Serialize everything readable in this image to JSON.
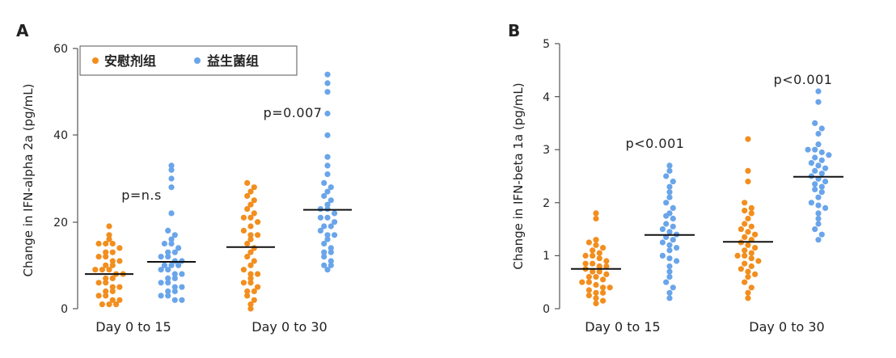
{
  "colors": {
    "placebo": "#f28e1e",
    "probiotic": "#6aa5ea"
  },
  "legend": {
    "placebo_label": "安慰剂组",
    "probiotic_label": "益生菌组"
  },
  "chart_data": [
    {
      "panel": "A",
      "type": "scatter",
      "ylabel": "Change in IFN-alpha 2a (pg/mL)",
      "ylim": [
        0,
        60
      ],
      "yticks": [
        "0",
        "20",
        "40",
        "60"
      ],
      "ytick_values": [
        0,
        20,
        40,
        60
      ],
      "legend_position": "top-left",
      "categories": [
        "Day 0 to 15",
        "Day 0 to 30"
      ],
      "pvalues": [
        "p=n.s",
        "p=0.007"
      ],
      "groups": [
        {
          "category": "Day 0 to 15",
          "series": "安慰剂组",
          "median": 8,
          "values": [
            19,
            17,
            16,
            15,
            15,
            15,
            14,
            13,
            13,
            12,
            12,
            11,
            11,
            10,
            10,
            9,
            9,
            9,
            8,
            8,
            7,
            7,
            6,
            6,
            5,
            5,
            4,
            4,
            3,
            3,
            2,
            2,
            1,
            1,
            1
          ]
        },
        {
          "category": "Day 0 to 15",
          "series": "益生菌组",
          "median": 10.8,
          "values": [
            33,
            32,
            30,
            28,
            22,
            18,
            17,
            16,
            15,
            15,
            14,
            13,
            13,
            12,
            12,
            11,
            11,
            10,
            10,
            10,
            9,
            9,
            8,
            8,
            7,
            7,
            6,
            6,
            5,
            5,
            4,
            4,
            3,
            3,
            2,
            2
          ]
        },
        {
          "category": "Day 0 to 30",
          "series": "安慰剂组",
          "median": 14.2,
          "values": [
            29,
            28,
            27,
            26,
            25,
            24,
            23,
            22,
            21,
            21,
            20,
            19,
            18,
            17,
            17,
            16,
            15,
            14,
            13,
            12,
            11,
            10,
            9,
            8,
            8,
            7,
            6,
            6,
            5,
            4,
            4,
            3,
            2,
            1,
            0
          ]
        },
        {
          "category": "Day 0 to 30",
          "series": "益生菌组",
          "median": 22.8,
          "values": [
            54,
            52,
            50,
            45,
            40,
            35,
            33,
            31,
            29,
            28,
            27,
            26,
            25,
            24,
            23,
            23,
            22,
            21,
            21,
            20,
            19,
            19,
            18,
            17,
            17,
            16,
            15,
            14,
            13,
            13,
            12,
            11,
            10,
            10,
            9
          ]
        }
      ]
    },
    {
      "panel": "B",
      "type": "scatter",
      "ylabel": "Change in IFN-beta 1a (pg/mL)",
      "ylim": [
        0,
        5
      ],
      "yticks": [
        "0",
        "1",
        "2",
        "3",
        "4",
        "5"
      ],
      "ytick_values": [
        0,
        1,
        2,
        3,
        4,
        5
      ],
      "categories": [
        "Day 0 to 15",
        "Day 0 to 30"
      ],
      "pvalues": [
        "p<0.001",
        "p<0.001"
      ],
      "groups": [
        {
          "category": "Day 0 to 15",
          "series": "安慰剂组",
          "median": 0.75,
          "values": [
            1.8,
            1.7,
            1.3,
            1.25,
            1.2,
            1.15,
            1.1,
            1.05,
            1.0,
            1.0,
            0.95,
            0.9,
            0.85,
            0.85,
            0.8,
            0.8,
            0.75,
            0.7,
            0.7,
            0.65,
            0.6,
            0.6,
            0.55,
            0.5,
            0.5,
            0.45,
            0.4,
            0.4,
            0.35,
            0.3,
            0.3,
            0.25,
            0.2,
            0.15,
            0.1
          ]
        },
        {
          "category": "Day 0 to 15",
          "series": "益生菌组",
          "median": 1.39,
          "values": [
            2.7,
            2.6,
            2.5,
            2.4,
            2.3,
            2.2,
            2.1,
            2.0,
            1.9,
            1.8,
            1.75,
            1.7,
            1.6,
            1.55,
            1.5,
            1.45,
            1.4,
            1.35,
            1.3,
            1.25,
            1.2,
            1.15,
            1.1,
            1.0,
            0.95,
            0.9,
            0.8,
            0.7,
            0.6,
            0.5,
            0.4,
            0.3,
            0.2
          ]
        },
        {
          "category": "Day 0 to 30",
          "series": "安慰剂组",
          "median": 1.26,
          "values": [
            3.2,
            2.6,
            2.4,
            2.0,
            1.9,
            1.85,
            1.8,
            1.7,
            1.6,
            1.55,
            1.5,
            1.45,
            1.4,
            1.35,
            1.3,
            1.25,
            1.2,
            1.15,
            1.1,
            1.05,
            1.0,
            1.0,
            0.95,
            0.9,
            0.85,
            0.8,
            0.75,
            0.7,
            0.65,
            0.6,
            0.5,
            0.4,
            0.3,
            0.2
          ]
        },
        {
          "category": "Day 0 to 30",
          "series": "益生菌组",
          "median": 2.49,
          "values": [
            4.1,
            3.9,
            3.5,
            3.4,
            3.3,
            3.1,
            3.0,
            3.0,
            2.95,
            2.9,
            2.85,
            2.8,
            2.75,
            2.7,
            2.65,
            2.6,
            2.55,
            2.5,
            2.45,
            2.4,
            2.35,
            2.3,
            2.25,
            2.2,
            2.1,
            2.0,
            1.95,
            1.9,
            1.8,
            1.7,
            1.6,
            1.5,
            1.4,
            1.3
          ]
        }
      ]
    }
  ]
}
